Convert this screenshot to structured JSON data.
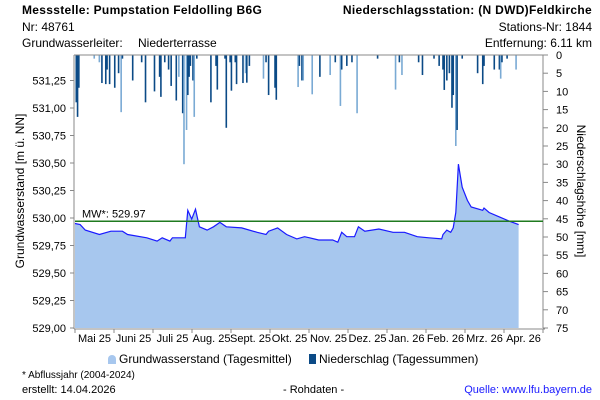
{
  "header": {
    "station_title": "Messstelle: Pumpstation Feldolling B6G",
    "station_nr": "Nr: 48761",
    "aquifer_label": "Grundwasserleiter:",
    "aquifer_value": "Niederterrasse",
    "precip_station": "Niederschlagsstation: (N DWD)Feldkirche",
    "precip_station_nr": "Stations-Nr: 1844",
    "distance": "Entfernung: 6.11 km"
  },
  "legend": {
    "groundwater": "Grundwasserstand (Tagesmittel)",
    "precip": "Niederschlag (Tagessummen)"
  },
  "footer": {
    "note": "* Abflussjahr (2004-2024)",
    "created": "erstellt:  14.04.2026",
    "raw": "- Rohdaten -",
    "source": "Quelle: www.lfu.bayern.de"
  },
  "colors": {
    "area": "#a7c7ee",
    "line": "#1a1aff",
    "mw": "#1f7a1f",
    "precip_dark": "#0b4a86",
    "precip_light": "#7aaad4"
  },
  "chart_data": {
    "type": "area",
    "x_start_date": "2025-05-01",
    "x_days": 365,
    "xticklabels": [
      "Mai 25",
      "Juni 25",
      "Juli 25",
      "Aug. 25",
      "Sept. 25",
      "Okt. 25",
      "Nov. 25",
      "Dez. 25",
      "Jan. 26",
      "Feb. 26",
      "Mrz. 26",
      "Apr. 26"
    ],
    "ylabel": "Grundwasserstand [m ü. NN]",
    "ylim": [
      529.0,
      531.45
    ],
    "yticklabels": [
      "529,00",
      "529,25",
      "529,50",
      "529,75",
      "530,00",
      "530,25",
      "530,50",
      "530,75",
      "531,00",
      "531,25"
    ],
    "yticks": [
      529.0,
      529.25,
      529.5,
      529.75,
      530.0,
      530.25,
      530.5,
      530.75,
      531.0,
      531.25
    ],
    "y2label": "Niederschlagshöhe [mm]",
    "y2lim": [
      0,
      75
    ],
    "y2ticks": [
      0,
      5,
      10,
      15,
      20,
      25,
      30,
      35,
      40,
      45,
      50,
      55,
      60,
      65,
      70,
      75
    ],
    "mean_line": {
      "label": "MW*: 529.97",
      "value": 529.97
    },
    "groundwater": {
      "name": "Grundwasserstand (Tagesmittel)",
      "day": [
        0,
        4,
        8,
        19,
        28,
        37,
        41,
        56,
        64,
        68,
        74,
        76,
        82,
        86,
        88,
        91,
        94,
        97,
        103,
        108,
        113,
        118,
        130,
        142,
        149,
        151,
        158,
        165,
        173,
        179,
        183,
        190,
        201,
        205,
        208,
        212,
        218,
        221,
        226,
        237,
        248,
        257,
        267,
        276,
        286,
        287,
        290,
        293,
        295,
        297,
        299,
        302,
        306,
        309,
        318,
        319,
        323,
        331,
        339,
        346
      ],
      "value": [
        529.95,
        529.94,
        529.89,
        529.85,
        529.88,
        529.88,
        529.85,
        529.82,
        529.79,
        529.82,
        529.79,
        529.82,
        529.82,
        529.82,
        530.07,
        529.99,
        530.08,
        529.92,
        529.89,
        529.92,
        529.96,
        529.92,
        529.91,
        529.87,
        529.85,
        529.88,
        529.91,
        529.85,
        529.81,
        529.83,
        529.82,
        529.8,
        529.8,
        529.78,
        529.87,
        529.83,
        529.83,
        529.92,
        529.88,
        529.9,
        529.87,
        529.87,
        529.83,
        529.82,
        529.81,
        529.85,
        529.89,
        529.87,
        529.91,
        530.05,
        530.49,
        530.28,
        530.16,
        530.1,
        530.07,
        530.09,
        530.05,
        530.01,
        529.97,
        529.94
      ]
    },
    "precipitation": {
      "name": "Niederschlag (Tagessummen)",
      "day": [
        1,
        2,
        3,
        15,
        19,
        21,
        24,
        25,
        27,
        31,
        34,
        36,
        37,
        45,
        52,
        55,
        62,
        66,
        67,
        70,
        73,
        75,
        79,
        81,
        84,
        85,
        87,
        88,
        89,
        90,
        92,
        93,
        95,
        106,
        110,
        111,
        117,
        118,
        121,
        122,
        125,
        126,
        131,
        133,
        134,
        136,
        147,
        149,
        151,
        156,
        157,
        174,
        175,
        177,
        178,
        185,
        191,
        199,
        203,
        207,
        208,
        212,
        216,
        220,
        236,
        250,
        253,
        255,
        268,
        271,
        280,
        284,
        287,
        288,
        290,
        292,
        294,
        295,
        297,
        298,
        302,
        314,
        318,
        319,
        327,
        331,
        332,
        333,
        337,
        344
      ],
      "mm": [
        13,
        17,
        9,
        1,
        2,
        7.7,
        8,
        4,
        8,
        9,
        5,
        15.7,
        1,
        7,
        2,
        13,
        10,
        6,
        11.5,
        2,
        4,
        8.5,
        12.5,
        6,
        16,
        30,
        20.6,
        11,
        6,
        3,
        7,
        17,
        1,
        13,
        3,
        9.5,
        1,
        20,
        2,
        9.8,
        2,
        8,
        7.7,
        5,
        7.6,
        3,
        6.5,
        2,
        11,
        9,
        12.3,
        8.8,
        3,
        7,
        7,
        10.8,
        6,
        5.5,
        2,
        14,
        4,
        3,
        2,
        16,
        1,
        9.5,
        2,
        5.5,
        2,
        5.5,
        1,
        3,
        4,
        9.6,
        7,
        5,
        14.5,
        11,
        25,
        20.6,
        1,
        5,
        8,
        3,
        4,
        4,
        6.5,
        2,
        1,
        4
      ],
      "shade": [
        "d",
        "d",
        "d",
        "l",
        "l",
        "d",
        "d",
        "d",
        "d",
        "d",
        "d",
        "l",
        "d",
        "d",
        "d",
        "d",
        "d",
        "d",
        "d",
        "d",
        "d",
        "d",
        "d",
        "l",
        "d",
        "l",
        "l",
        "d",
        "d",
        "d",
        "d",
        "l",
        "d",
        "d",
        "d",
        "d",
        "d",
        "d",
        "d",
        "d",
        "d",
        "d",
        "d",
        "l",
        "d",
        "d",
        "l",
        "d",
        "d",
        "d",
        "d",
        "l",
        "d",
        "d",
        "l",
        "l",
        "d",
        "l",
        "d",
        "l",
        "d",
        "d",
        "d",
        "l",
        "d",
        "l",
        "d",
        "l",
        "d",
        "d",
        "d",
        "d",
        "d",
        "d",
        "d",
        "d",
        "d",
        "d",
        "l",
        "d",
        "d",
        "d",
        "d",
        "d",
        "d",
        "d",
        "l",
        "d",
        "d",
        "l"
      ]
    }
  }
}
